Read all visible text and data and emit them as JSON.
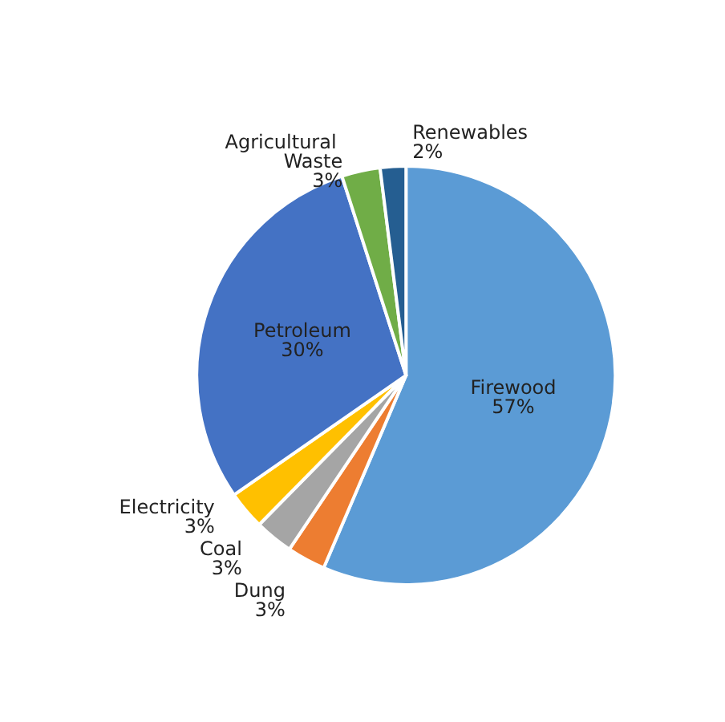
{
  "chart_data": {
    "type": "pie",
    "categories": [
      "Firewood",
      "Dung",
      "Coal",
      "Electricity",
      "Petroleum",
      "Agricultural Waste",
      "Renewables"
    ],
    "values": [
      57,
      3,
      3,
      3,
      30,
      3,
      2
    ],
    "value_labels": [
      "57%",
      "3%",
      "3%",
      "3%",
      "30%",
      "3%",
      "2%"
    ],
    "colors": [
      "#5b9bd5",
      "#ed7d31",
      "#a5a5a5",
      "#ffc000",
      "#4472c4",
      "#70ad47",
      "#255e91"
    ],
    "legend": false
  }
}
